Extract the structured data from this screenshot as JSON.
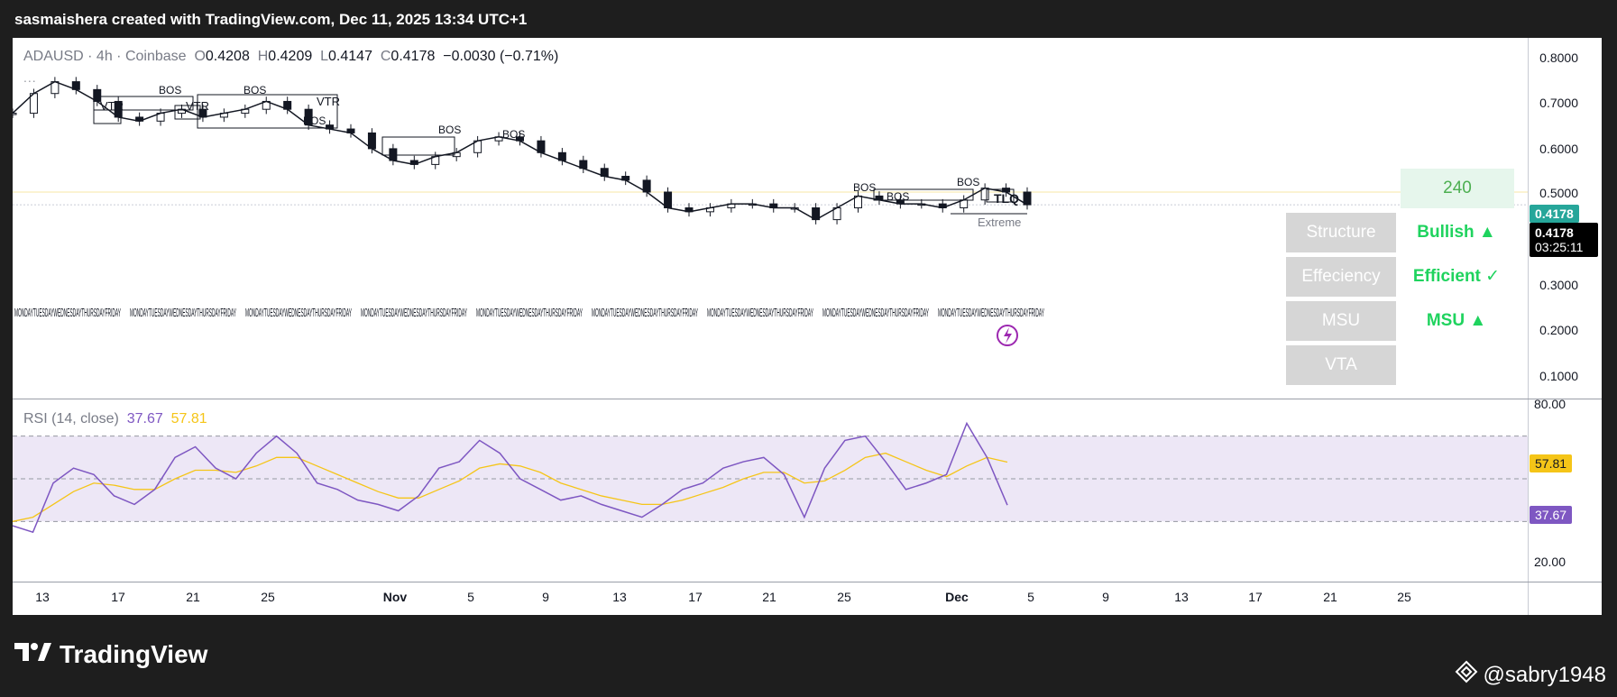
{
  "header": {
    "caption": "sasmaishera created with TradingView.com, Dec 11, 2025 13:34 UTC+1"
  },
  "legend": {
    "symbol": "ADAUSD",
    "sep1": "·",
    "timeframe": "4h",
    "sep2": "·",
    "exchange": "Coinbase",
    "o_label": "O",
    "o_value": "0.4208",
    "h_label": "H",
    "h_value": "0.4209",
    "l_label": "L",
    "l_value": "0.4147",
    "c_label": "C",
    "c_value": "0.4178",
    "change": "−0.0030 (−0.71%)",
    "more": "..."
  },
  "price_axis": {
    "labels": [
      "0.8000",
      "0.7000",
      "0.6000",
      "0.5000",
      "0.3000",
      "0.2000",
      "0.1000"
    ],
    "last_price": "0.4178",
    "last_price_2": "0.4178",
    "countdown": "03:25:11"
  },
  "rsi": {
    "title": "RSI (14, close)",
    "value": "37.67",
    "ma_value": "57.81",
    "axis_labels": [
      "80.00",
      "20.00"
    ],
    "tag_ma": "57.81",
    "tag_rsi": "37.67"
  },
  "time_axis": {
    "labels": [
      "13",
      "17",
      "21",
      "25",
      "Nov",
      "5",
      "9",
      "13",
      "17",
      "21",
      "25",
      "Dec",
      "5",
      "9",
      "13",
      "17",
      "21",
      "25"
    ]
  },
  "indicator_table": {
    "timeframe": "240",
    "rows": [
      {
        "label": "Structure",
        "value": "Bullish ▲"
      },
      {
        "label": "Effeciency",
        "value": "Efficient ✓"
      },
      {
        "label": "MSU",
        "value": "MSU ▲"
      },
      {
        "label": "VTA",
        "value": ""
      }
    ]
  },
  "annotations": {
    "bos": "BOS",
    "vtr": "VTR",
    "extreme": "Extreme",
    "tlq": "TLQ",
    "weekday_text": "MONDAYTUESDAYWEDNESDAYTHURSDAYFRIDAY"
  },
  "colors": {
    "rsi_line": "#7e57c2",
    "rsi_ma": "#f5c518",
    "rsi_band": "#ede7f6",
    "teal_tag": "#26a69a",
    "black_tag": "#000000",
    "yellow_tag": "#f5c518",
    "purple_tag": "#7e57c2",
    "green_text": "#1fd35e"
  },
  "footer": {
    "brand": "TradingView",
    "credit": "@sabry1948"
  },
  "chart_data": {
    "type": "line",
    "title": "",
    "panes": [
      {
        "name": "price",
        "ylim": [
          0.1,
          0.8
        ],
        "points_date_close": [
          [
            "Oct 11",
            0.65
          ],
          [
            "Oct 12",
            0.7
          ],
          [
            "Oct 13",
            0.73
          ],
          [
            "Oct 14",
            0.71
          ],
          [
            "Oct 15",
            0.68
          ],
          [
            "Oct 17",
            0.64
          ],
          [
            "Oct 18",
            0.63
          ],
          [
            "Oct 19",
            0.65
          ],
          [
            "Oct 21",
            0.66
          ],
          [
            "Oct 23",
            0.64
          ],
          [
            "Oct 24",
            0.65
          ],
          [
            "Oct 26",
            0.66
          ],
          [
            "Oct 27",
            0.68
          ],
          [
            "Oct 29",
            0.66
          ],
          [
            "Oct 30",
            0.62
          ],
          [
            "Oct 31",
            0.61
          ],
          [
            "Nov 2",
            0.6
          ],
          [
            "Nov 3",
            0.56
          ],
          [
            "Nov 4",
            0.53
          ],
          [
            "Nov 5",
            0.52
          ],
          [
            "Nov 7",
            0.54
          ],
          [
            "Nov 8",
            0.55
          ],
          [
            "Nov 9",
            0.58
          ],
          [
            "Nov 10",
            0.59
          ],
          [
            "Nov 11",
            0.58
          ],
          [
            "Nov 13",
            0.55
          ],
          [
            "Nov 14",
            0.53
          ],
          [
            "Nov 16",
            0.51
          ],
          [
            "Nov 17",
            0.49
          ],
          [
            "Nov 18",
            0.48
          ],
          [
            "Nov 20",
            0.45
          ],
          [
            "Nov 21",
            0.41
          ],
          [
            "Nov 22",
            0.4
          ],
          [
            "Nov 24",
            0.41
          ],
          [
            "Nov 26",
            0.42
          ],
          [
            "Nov 28",
            0.42
          ],
          [
            "Nov 29",
            0.41
          ],
          [
            "Nov 30",
            0.41
          ],
          [
            "Dec 1",
            0.38
          ],
          [
            "Dec 2",
            0.41
          ],
          [
            "Dec 3",
            0.44
          ],
          [
            "Dec 4",
            0.43
          ],
          [
            "Dec 5",
            0.42
          ],
          [
            "Dec 6",
            0.42
          ],
          [
            "Dec 7",
            0.41
          ],
          [
            "Dec 8",
            0.43
          ],
          [
            "Dec 9",
            0.46
          ],
          [
            "Dec 10",
            0.45
          ],
          [
            "Dec 11",
            0.4178
          ]
        ]
      },
      {
        "name": "RSI (14, close)",
        "ylim": [
          0,
          100
        ],
        "guides": [
          70,
          50,
          30
        ],
        "series": [
          {
            "name": "RSI",
            "values": [
              28,
              25,
              48,
              55,
              52,
              42,
              38,
              45,
              60,
              65,
              55,
              50,
              62,
              70,
              62,
              48,
              45,
              40,
              38,
              35,
              42,
              55,
              58,
              68,
              62,
              50,
              45,
              40,
              42,
              38,
              35,
              32,
              38,
              45,
              48,
              55,
              58,
              60,
              52,
              32,
              55,
              68,
              70,
              58,
              45,
              48,
              52,
              76,
              60,
              37.67
            ]
          },
          {
            "name": "RSI MA",
            "values": [
              30,
              32,
              38,
              44,
              48,
              47,
              45,
              45,
              50,
              54,
              54,
              53,
              56,
              60,
              60,
              56,
              52,
              48,
              44,
              41,
              41,
              45,
              49,
              55,
              57,
              56,
              53,
              48,
              45,
              42,
              40,
              38,
              38,
              40,
              43,
              46,
              50,
              53,
              53,
              48,
              49,
              54,
              60,
              62,
              58,
              54,
              51,
              56,
              60,
              57.81
            ]
          }
        ]
      }
    ]
  }
}
